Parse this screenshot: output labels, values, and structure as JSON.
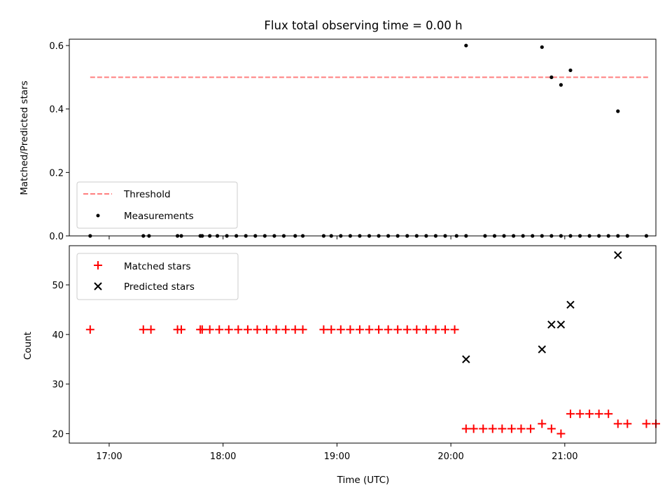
{
  "chart_data": [
    {
      "type": "scatter",
      "title": "Flux total observing time = 0.00 h",
      "xlabel": "",
      "ylabel": "Matched/Predicted stars",
      "ylim": [
        0,
        0.62
      ],
      "yticks": [
        "0.0",
        "0.2",
        "0.4",
        "0.6"
      ],
      "xlim": [
        "16:39",
        "21:48"
      ],
      "xticks": [
        "17:00",
        "18:00",
        "19:00",
        "20:00",
        "21:00"
      ],
      "legend_position": "lower-left",
      "series": [
        {
          "name": "Threshold",
          "type": "line",
          "style": "dashed",
          "color": "#ff7f7f",
          "x": [
            "16:50",
            "21:45"
          ],
          "y": [
            0.5,
            0.5
          ]
        },
        {
          "name": "Measurements",
          "type": "scatter",
          "color": "#000000",
          "x": [
            "16:50",
            "17:18",
            "17:21",
            "17:36",
            "17:38",
            "17:48",
            "17:49",
            "17:53",
            "17:57",
            "18:02",
            "18:07",
            "18:12",
            "18:17",
            "18:22",
            "18:27",
            "18:32",
            "18:38",
            "18:42",
            "18:53",
            "18:57",
            "19:02",
            "19:07",
            "19:12",
            "19:17",
            "19:22",
            "19:27",
            "19:32",
            "19:37",
            "19:42",
            "19:47",
            "19:52",
            "19:57",
            "20:03",
            "20:08",
            "20:18",
            "20:23",
            "20:28",
            "20:33",
            "20:38",
            "20:43",
            "20:48",
            "20:53",
            "20:58",
            "21:03",
            "21:08",
            "21:13",
            "21:18",
            "21:23",
            "21:28",
            "21:33",
            "21:43",
            "20:08",
            "20:48",
            "20:53",
            "20:58",
            "21:03",
            "21:28"
          ],
          "y": [
            0,
            0,
            0,
            0,
            0,
            0,
            0,
            0,
            0,
            0,
            0,
            0,
            0,
            0,
            0,
            0,
            0,
            0,
            0,
            0,
            0,
            0,
            0,
            0,
            0,
            0,
            0,
            0,
            0,
            0,
            0,
            0,
            0,
            0,
            0,
            0,
            0,
            0,
            0,
            0,
            0,
            0,
            0,
            0,
            0,
            0,
            0,
            0,
            0,
            0,
            0,
            0.6,
            0.595,
            0.5,
            0.476,
            0.522,
            0.393
          ]
        }
      ]
    },
    {
      "type": "scatter",
      "title": "",
      "xlabel": "Time (UTC)",
      "ylabel": "Count",
      "ylim": [
        18.1,
        57.9
      ],
      "yticks": [
        "20",
        "30",
        "40",
        "50"
      ],
      "xlim": [
        "16:39",
        "21:48"
      ],
      "xticks": [
        "17:00",
        "18:00",
        "19:00",
        "20:00",
        "21:00"
      ],
      "legend_position": "upper-left",
      "series": [
        {
          "name": "Matched stars",
          "marker": "+",
          "color": "#ff0000",
          "x": [
            "16:50",
            "17:18",
            "17:22",
            "17:36",
            "17:38",
            "17:48",
            "17:49",
            "17:53",
            "17:58",
            "18:03",
            "18:08",
            "18:13",
            "18:18",
            "18:23",
            "18:28",
            "18:33",
            "18:38",
            "18:42",
            "18:53",
            "18:57",
            "19:02",
            "19:07",
            "19:12",
            "19:17",
            "19:22",
            "19:27",
            "19:32",
            "19:37",
            "19:42",
            "19:47",
            "19:52",
            "19:57",
            "20:02",
            "20:08",
            "20:12",
            "20:17",
            "20:22",
            "20:27",
            "20:32",
            "20:37",
            "20:42",
            "20:48",
            "20:53",
            "20:58",
            "21:03",
            "21:08",
            "21:13",
            "21:18",
            "21:23",
            "21:28",
            "21:33",
            "21:43",
            "21:48"
          ],
          "y": [
            41,
            41,
            41,
            41,
            41,
            41,
            41,
            41,
            41,
            41,
            41,
            41,
            41,
            41,
            41,
            41,
            41,
            41,
            41,
            41,
            41,
            41,
            41,
            41,
            41,
            41,
            41,
            41,
            41,
            41,
            41,
            41,
            41,
            21,
            21,
            21,
            21,
            21,
            21,
            21,
            21,
            22,
            21,
            20,
            24,
            24,
            24,
            24,
            24,
            22,
            22,
            22,
            22
          ]
        },
        {
          "name": "Predicted stars",
          "marker": "x",
          "color": "#000000",
          "x": [
            "20:08",
            "20:48",
            "20:53",
            "20:58",
            "21:03",
            "21:28"
          ],
          "y": [
            35,
            37,
            42,
            42,
            46,
            56
          ]
        }
      ]
    }
  ]
}
